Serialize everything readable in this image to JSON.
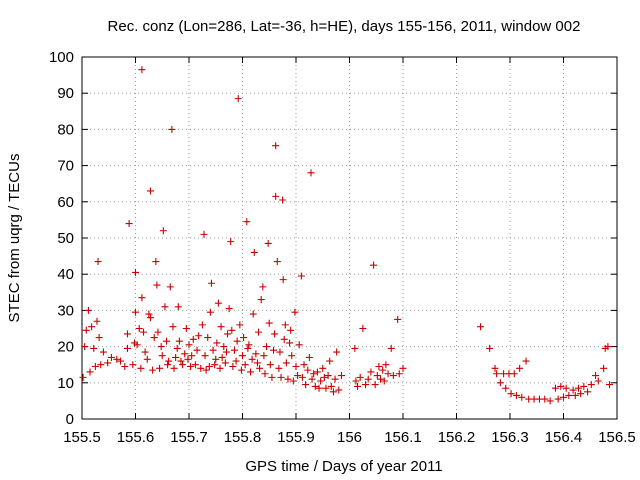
{
  "chart_data": {
    "type": "scatter",
    "title": "Rec. conz (Lon=286, Lat=-36, h=HE), days 155-156, 2011, window 002",
    "xlabel": "GPS time / Days of year 2011",
    "ylabel": "STEC from uqrg / TECUs",
    "xlim": [
      155.5,
      156.5
    ],
    "ylim": [
      0,
      100
    ],
    "x_ticks": [
      155.5,
      155.6,
      155.7,
      155.8,
      155.9,
      156.0,
      156.1,
      156.2,
      156.3,
      156.4,
      156.5
    ],
    "x_tick_labels": [
      "155.5",
      "155.6",
      "155.7",
      "155.8",
      "155.9",
      "156",
      "156.1",
      "156.2",
      "156.3",
      "156.4",
      "156.5"
    ],
    "y_ticks": [
      0,
      10,
      20,
      30,
      40,
      50,
      60,
      70,
      80,
      90,
      100
    ],
    "y_tick_labels": [
      "0",
      "10",
      "20",
      "30",
      "40",
      "50",
      "60",
      "70",
      "80",
      "90",
      "100"
    ],
    "grid": true,
    "marker": "+",
    "color": "#cc0000",
    "series": [
      {
        "name": "STEC",
        "points": [
          [
            155.502,
            11.5
          ],
          [
            155.505,
            20.0
          ],
          [
            155.508,
            24.5
          ],
          [
            155.512,
            30.0
          ],
          [
            155.515,
            13.0
          ],
          [
            155.518,
            25.5
          ],
          [
            155.522,
            19.5
          ],
          [
            155.525,
            14.5
          ],
          [
            155.528,
            27.0
          ],
          [
            155.53,
            43.5
          ],
          [
            155.532,
            22.5
          ],
          [
            155.535,
            15.0
          ],
          [
            155.54,
            18.5
          ],
          [
            155.548,
            15.5
          ],
          [
            155.555,
            17.0
          ],
          [
            155.565,
            16.5
          ],
          [
            155.572,
            16.0
          ],
          [
            155.58,
            14.5
          ],
          [
            155.585,
            19.5
          ],
          [
            155.585,
            23.5
          ],
          [
            155.588,
            54.0
          ],
          [
            155.595,
            15.0
          ],
          [
            155.598,
            21.0
          ],
          [
            155.6,
            29.5
          ],
          [
            155.6,
            40.5
          ],
          [
            155.603,
            20.5
          ],
          [
            155.607,
            25.0
          ],
          [
            155.61,
            14.0
          ],
          [
            155.612,
            33.5
          ],
          [
            155.612,
            96.5
          ],
          [
            155.615,
            24.0
          ],
          [
            155.618,
            18.5
          ],
          [
            155.622,
            16.5
          ],
          [
            155.625,
            29.0
          ],
          [
            155.628,
            28.0
          ],
          [
            155.628,
            63.0
          ],
          [
            155.632,
            13.5
          ],
          [
            155.635,
            22.5
          ],
          [
            155.638,
            43.5
          ],
          [
            155.64,
            37.0
          ],
          [
            155.642,
            24.0
          ],
          [
            155.645,
            14.0
          ],
          [
            155.648,
            20.0
          ],
          [
            155.65,
            17.5
          ],
          [
            155.652,
            52.0
          ],
          [
            155.655,
            31.0
          ],
          [
            155.658,
            21.5
          ],
          [
            155.66,
            15.0
          ],
          [
            155.662,
            16.0
          ],
          [
            155.665,
            36.5
          ],
          [
            155.668,
            80.0
          ],
          [
            155.67,
            25.5
          ],
          [
            155.672,
            14.0
          ],
          [
            155.675,
            17.0
          ],
          [
            155.678,
            19.5
          ],
          [
            155.68,
            31.0
          ],
          [
            155.682,
            21.5
          ],
          [
            155.685,
            16.0
          ],
          [
            155.688,
            15.0
          ],
          [
            155.692,
            18.0
          ],
          [
            155.695,
            25.0
          ],
          [
            155.698,
            16.5
          ],
          [
            155.7,
            20.5
          ],
          [
            155.703,
            14.5
          ],
          [
            155.705,
            17.5
          ],
          [
            155.708,
            22.0
          ],
          [
            155.712,
            15.0
          ],
          [
            155.715,
            19.0
          ],
          [
            155.718,
            23.0
          ],
          [
            155.722,
            14.0
          ],
          [
            155.725,
            26.0
          ],
          [
            155.728,
            51.0
          ],
          [
            155.73,
            17.5
          ],
          [
            155.732,
            13.5
          ],
          [
            155.735,
            22.5
          ],
          [
            155.738,
            14.5
          ],
          [
            155.74,
            29.5
          ],
          [
            155.742,
            37.5
          ],
          [
            155.745,
            19.0
          ],
          [
            155.748,
            15.0
          ],
          [
            155.75,
            16.5
          ],
          [
            155.752,
            21.0
          ],
          [
            155.755,
            32.0
          ],
          [
            155.758,
            14.0
          ],
          [
            155.76,
            25.5
          ],
          [
            155.762,
            17.0
          ],
          [
            155.765,
            20.0
          ],
          [
            155.768,
            15.5
          ],
          [
            155.77,
            18.5
          ],
          [
            155.772,
            23.5
          ],
          [
            155.775,
            30.5
          ],
          [
            155.778,
            49.0
          ],
          [
            155.78,
            24.5
          ],
          [
            155.782,
            14.5
          ],
          [
            155.785,
            19.0
          ],
          [
            155.788,
            16.0
          ],
          [
            155.79,
            21.5
          ],
          [
            155.792,
            88.5
          ],
          [
            155.795,
            26.0
          ],
          [
            155.798,
            13.5
          ],
          [
            155.8,
            17.5
          ],
          [
            155.802,
            22.5
          ],
          [
            155.805,
            15.0
          ],
          [
            155.808,
            54.5
          ],
          [
            155.81,
            19.5
          ],
          [
            155.812,
            20.5
          ],
          [
            155.815,
            13.0
          ],
          [
            155.818,
            16.5
          ],
          [
            155.82,
            29.0
          ],
          [
            155.822,
            46.0
          ],
          [
            155.825,
            18.0
          ],
          [
            155.828,
            15.5
          ],
          [
            155.83,
            24.0
          ],
          [
            155.832,
            14.0
          ],
          [
            155.835,
            33.0
          ],
          [
            155.838,
            36.5
          ],
          [
            155.84,
            17.5
          ],
          [
            155.842,
            12.5
          ],
          [
            155.845,
            20.0
          ],
          [
            155.848,
            48.5
          ],
          [
            155.85,
            26.5
          ],
          [
            155.852,
            15.0
          ],
          [
            155.855,
            11.5
          ],
          [
            155.858,
            19.0
          ],
          [
            155.86,
            23.5
          ],
          [
            155.862,
            75.5
          ],
          [
            155.862,
            61.5
          ],
          [
            155.865,
            43.5
          ],
          [
            155.868,
            14.0
          ],
          [
            155.87,
            18.5
          ],
          [
            155.872,
            11.5
          ],
          [
            155.875,
            60.5
          ],
          [
            155.876,
            38.5
          ],
          [
            155.878,
            22.0
          ],
          [
            155.88,
            26.0
          ],
          [
            155.882,
            15.5
          ],
          [
            155.885,
            11.0
          ],
          [
            155.888,
            21.0
          ],
          [
            155.89,
            24.5
          ],
          [
            155.892,
            17.5
          ],
          [
            155.895,
            10.5
          ],
          [
            155.898,
            29.5
          ],
          [
            155.9,
            14.5
          ],
          [
            155.903,
            12.0
          ],
          [
            155.906,
            20.5
          ],
          [
            155.91,
            39.5
          ],
          [
            155.912,
            11.5
          ],
          [
            155.915,
            15.0
          ],
          [
            155.918,
            9.5
          ],
          [
            155.922,
            13.5
          ],
          [
            155.925,
            17.0
          ],
          [
            155.928,
            68.0
          ],
          [
            155.93,
            11.0
          ],
          [
            155.933,
            12.5
          ],
          [
            155.936,
            9.0
          ],
          [
            155.94,
            13.0
          ],
          [
            155.943,
            8.5
          ],
          [
            155.946,
            10.5
          ],
          [
            155.95,
            14.0
          ],
          [
            155.953,
            11.5
          ],
          [
            155.956,
            8.5
          ],
          [
            155.96,
            12.0
          ],
          [
            155.963,
            16.0
          ],
          [
            155.966,
            9.0
          ],
          [
            155.97,
            7.5
          ],
          [
            155.973,
            11.0
          ],
          [
            155.976,
            18.5
          ],
          [
            155.98,
            8.0
          ],
          [
            155.985,
            12.0
          ],
          [
            156.01,
            19.5
          ],
          [
            156.012,
            10.5
          ],
          [
            156.015,
            9.0
          ],
          [
            156.02,
            11.5
          ],
          [
            156.025,
            25.0
          ],
          [
            156.03,
            9.5
          ],
          [
            156.035,
            11.0
          ],
          [
            156.04,
            13.0
          ],
          [
            156.045,
            42.5
          ],
          [
            156.048,
            9.5
          ],
          [
            156.052,
            12.0
          ],
          [
            156.055,
            14.5
          ],
          [
            156.058,
            11.0
          ],
          [
            156.062,
            13.5
          ],
          [
            156.065,
            10.5
          ],
          [
            156.068,
            15.0
          ],
          [
            156.072,
            12.5
          ],
          [
            156.078,
            19.5
          ],
          [
            156.082,
            12.0
          ],
          [
            156.09,
            27.5
          ],
          [
            156.093,
            12.5
          ],
          [
            156.1,
            14.0
          ],
          [
            156.245,
            25.5
          ],
          [
            156.262,
            19.5
          ],
          [
            156.272,
            14.0
          ],
          [
            156.275,
            12.5
          ],
          [
            156.282,
            10.0
          ],
          [
            156.288,
            12.5
          ],
          [
            156.292,
            8.5
          ],
          [
            156.298,
            12.5
          ],
          [
            156.302,
            7.0
          ],
          [
            156.308,
            12.5
          ],
          [
            156.312,
            6.5
          ],
          [
            156.318,
            14.0
          ],
          [
            156.322,
            6.0
          ],
          [
            156.33,
            16.0
          ],
          [
            156.335,
            5.5
          ],
          [
            156.345,
            5.5
          ],
          [
            156.355,
            5.5
          ],
          [
            156.365,
            5.5
          ],
          [
            156.375,
            5.0
          ],
          [
            156.385,
            8.5
          ],
          [
            156.39,
            5.5
          ],
          [
            156.395,
            9.0
          ],
          [
            156.4,
            6.0
          ],
          [
            156.405,
            8.5
          ],
          [
            156.41,
            6.5
          ],
          [
            156.418,
            8.0
          ],
          [
            156.422,
            6.5
          ],
          [
            156.428,
            8.5
          ],
          [
            156.432,
            7.0
          ],
          [
            156.438,
            9.0
          ],
          [
            156.445,
            7.5
          ],
          [
            156.452,
            9.5
          ],
          [
            156.46,
            12.0
          ],
          [
            156.465,
            10.5
          ],
          [
            156.475,
            14.0
          ],
          [
            156.478,
            19.5
          ],
          [
            156.483,
            20.0
          ],
          [
            156.486,
            9.5
          ]
        ]
      }
    ]
  }
}
